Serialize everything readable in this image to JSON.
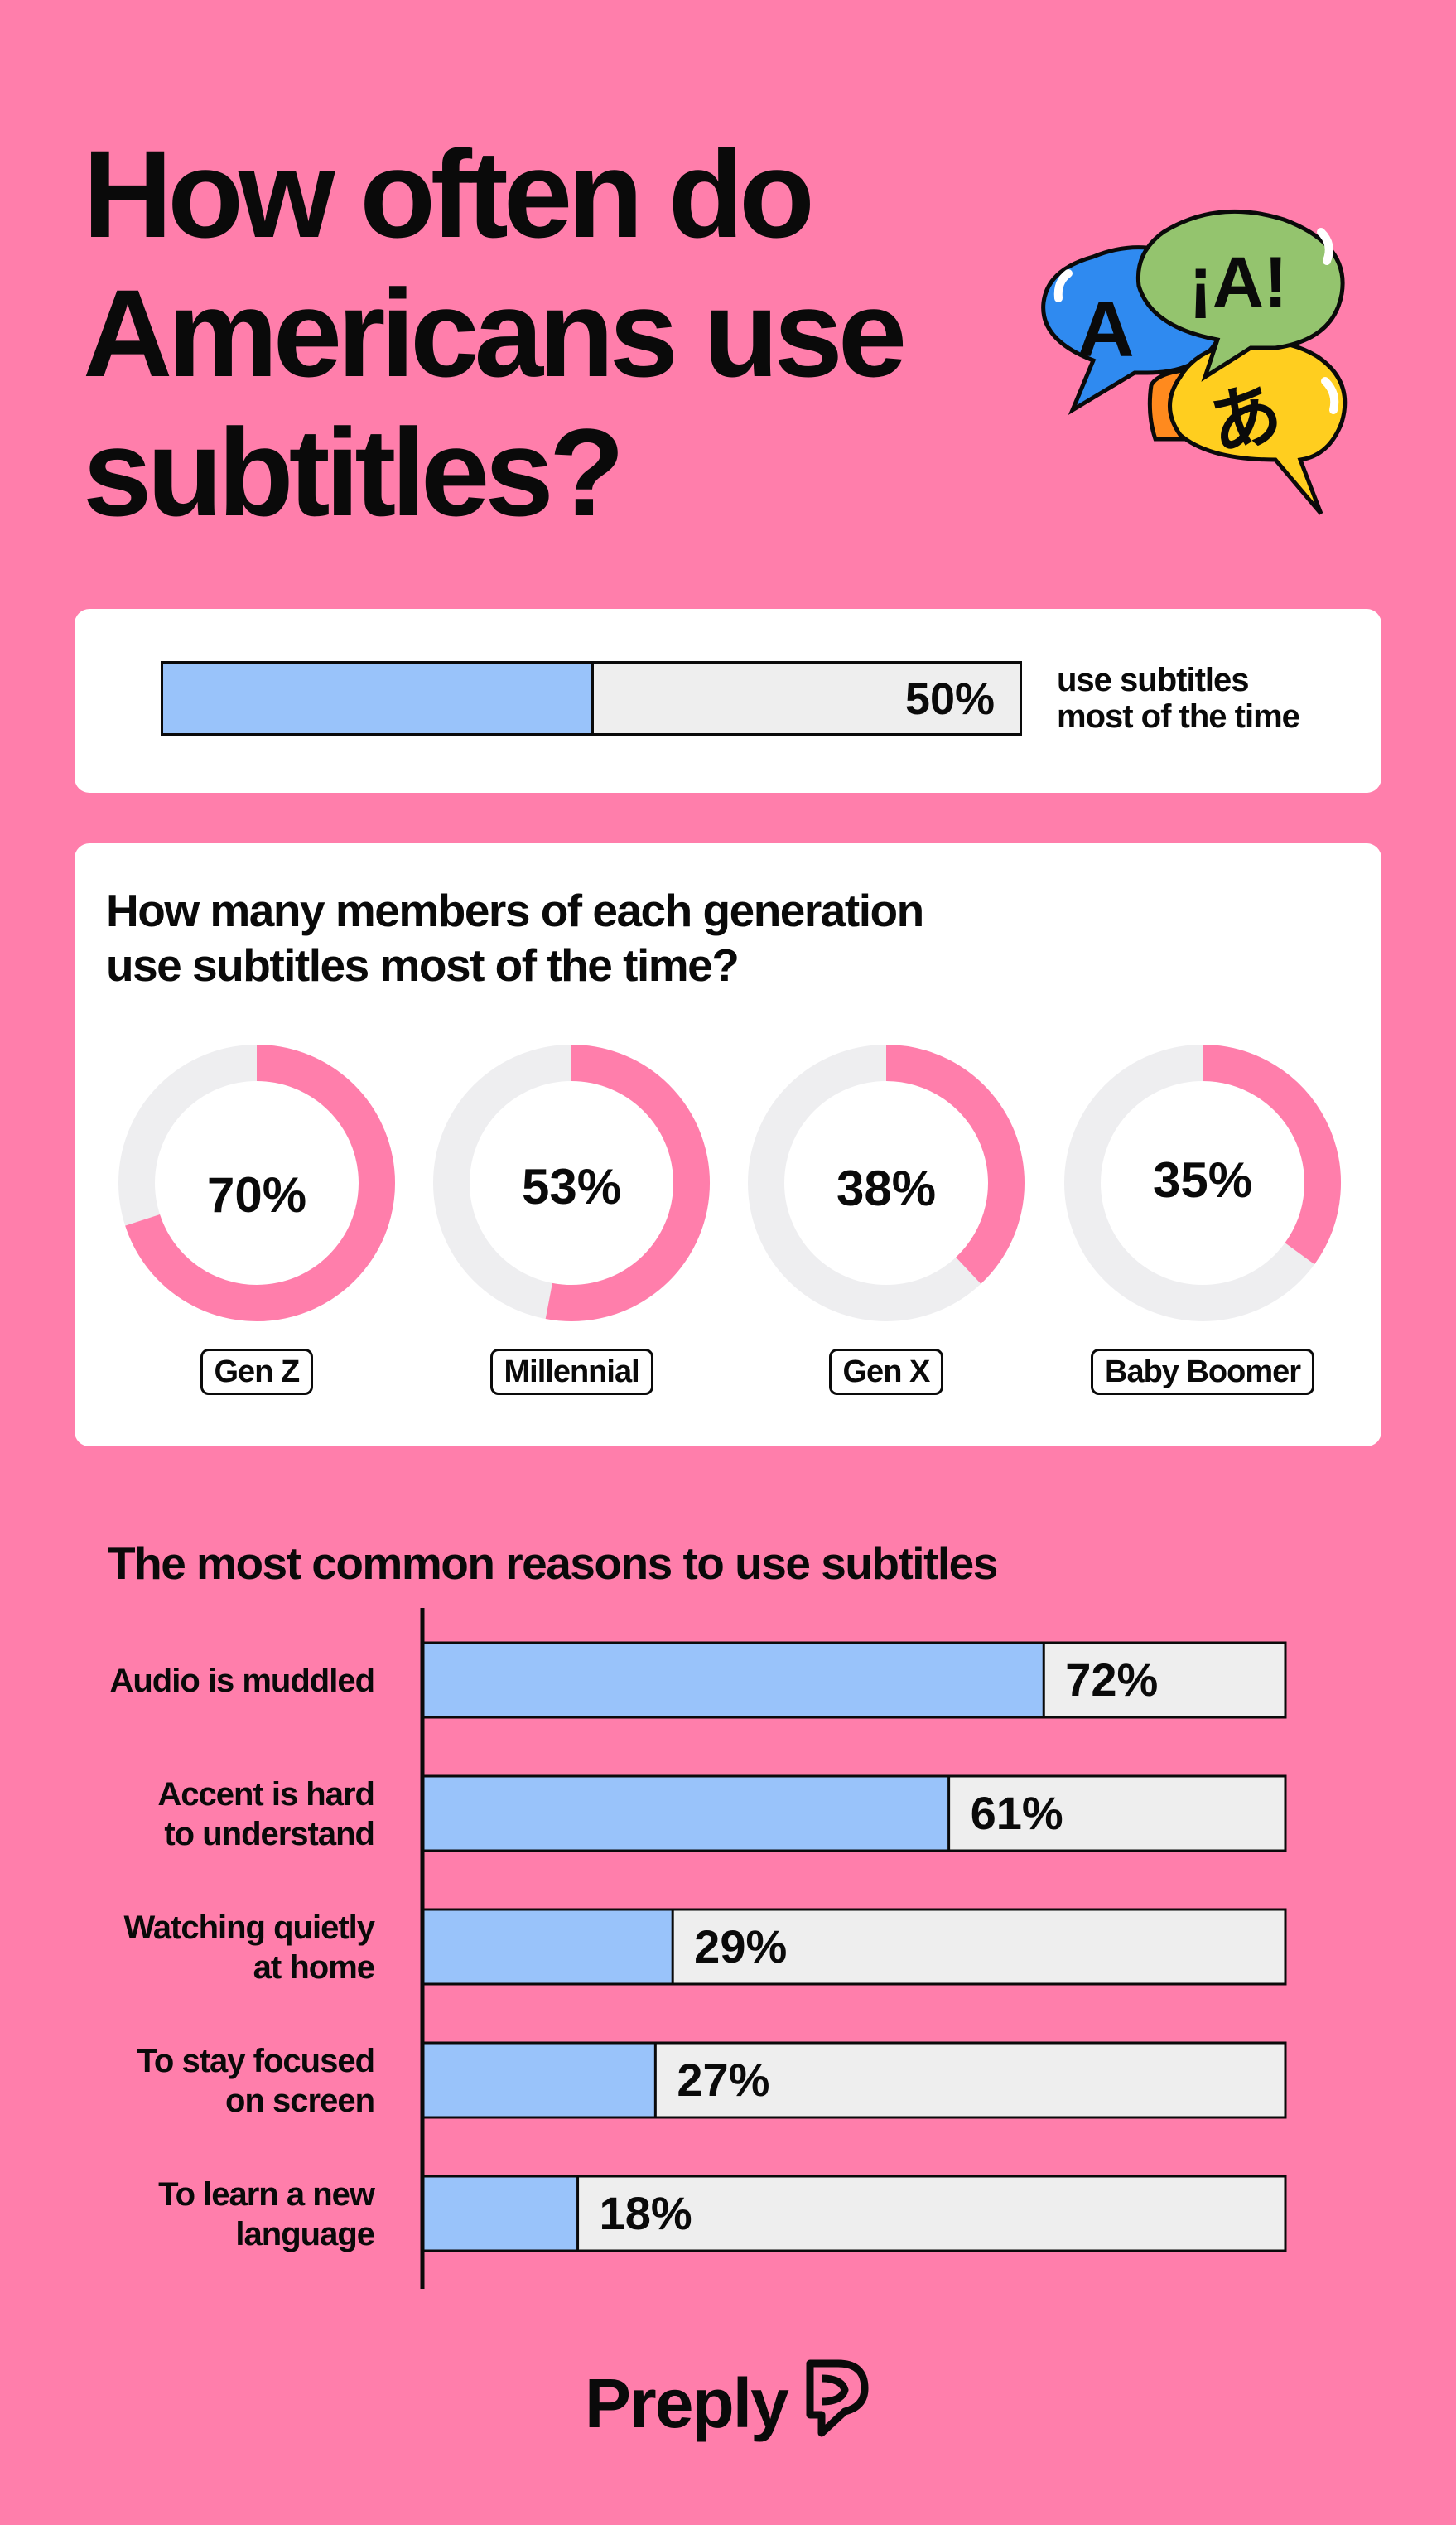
{
  "title_lines": [
    "How often do",
    "Americans use",
    "subtitles?"
  ],
  "bubbles": {
    "glyphs": [
      "¡A!",
      "A",
      "あ"
    ],
    "colors": [
      "#94C46E",
      "#2F8AF0",
      "#FFCE1F",
      "#FF8A1E"
    ]
  },
  "overall": {
    "percent": "50%",
    "value": 0.5,
    "label_lines": [
      "use subtitles",
      "most of the time"
    ]
  },
  "generations": {
    "title_lines": [
      "How many members of each generation",
      "use subtitles most of the time?"
    ],
    "items": [
      {
        "label": "Gen Z",
        "percent": "70%",
        "value": 0.7
      },
      {
        "label": "Millennial",
        "percent": "53%",
        "value": 0.53
      },
      {
        "label": "Gen X",
        "percent": "38%",
        "value": 0.38
      },
      {
        "label": "Baby Boomer",
        "percent": "35%",
        "value": 0.35
      }
    ]
  },
  "chart_data": {
    "type": "bar",
    "orientation": "horizontal",
    "title": "The most common reasons to use subtitles",
    "categories": [
      [
        "Audio is muddled"
      ],
      [
        "Accent is hard",
        "to understand"
      ],
      [
        "Watching quietly",
        "at home"
      ],
      [
        "To stay focused",
        "on screen"
      ],
      [
        "To learn a new",
        "language"
      ]
    ],
    "values": [
      72,
      61,
      29,
      27,
      18
    ],
    "value_labels": [
      "72%",
      "61%",
      "29%",
      "27%",
      "18%"
    ],
    "xlim": [
      0,
      100
    ]
  },
  "colors": {
    "background": "#FF7EAB",
    "bar_fill": "#99C3FA",
    "bar_track": "#EEEEEE",
    "ring": "#FF7EAB",
    "ring_track": "#EEEEF0"
  },
  "brand": {
    "name": "Preply"
  }
}
